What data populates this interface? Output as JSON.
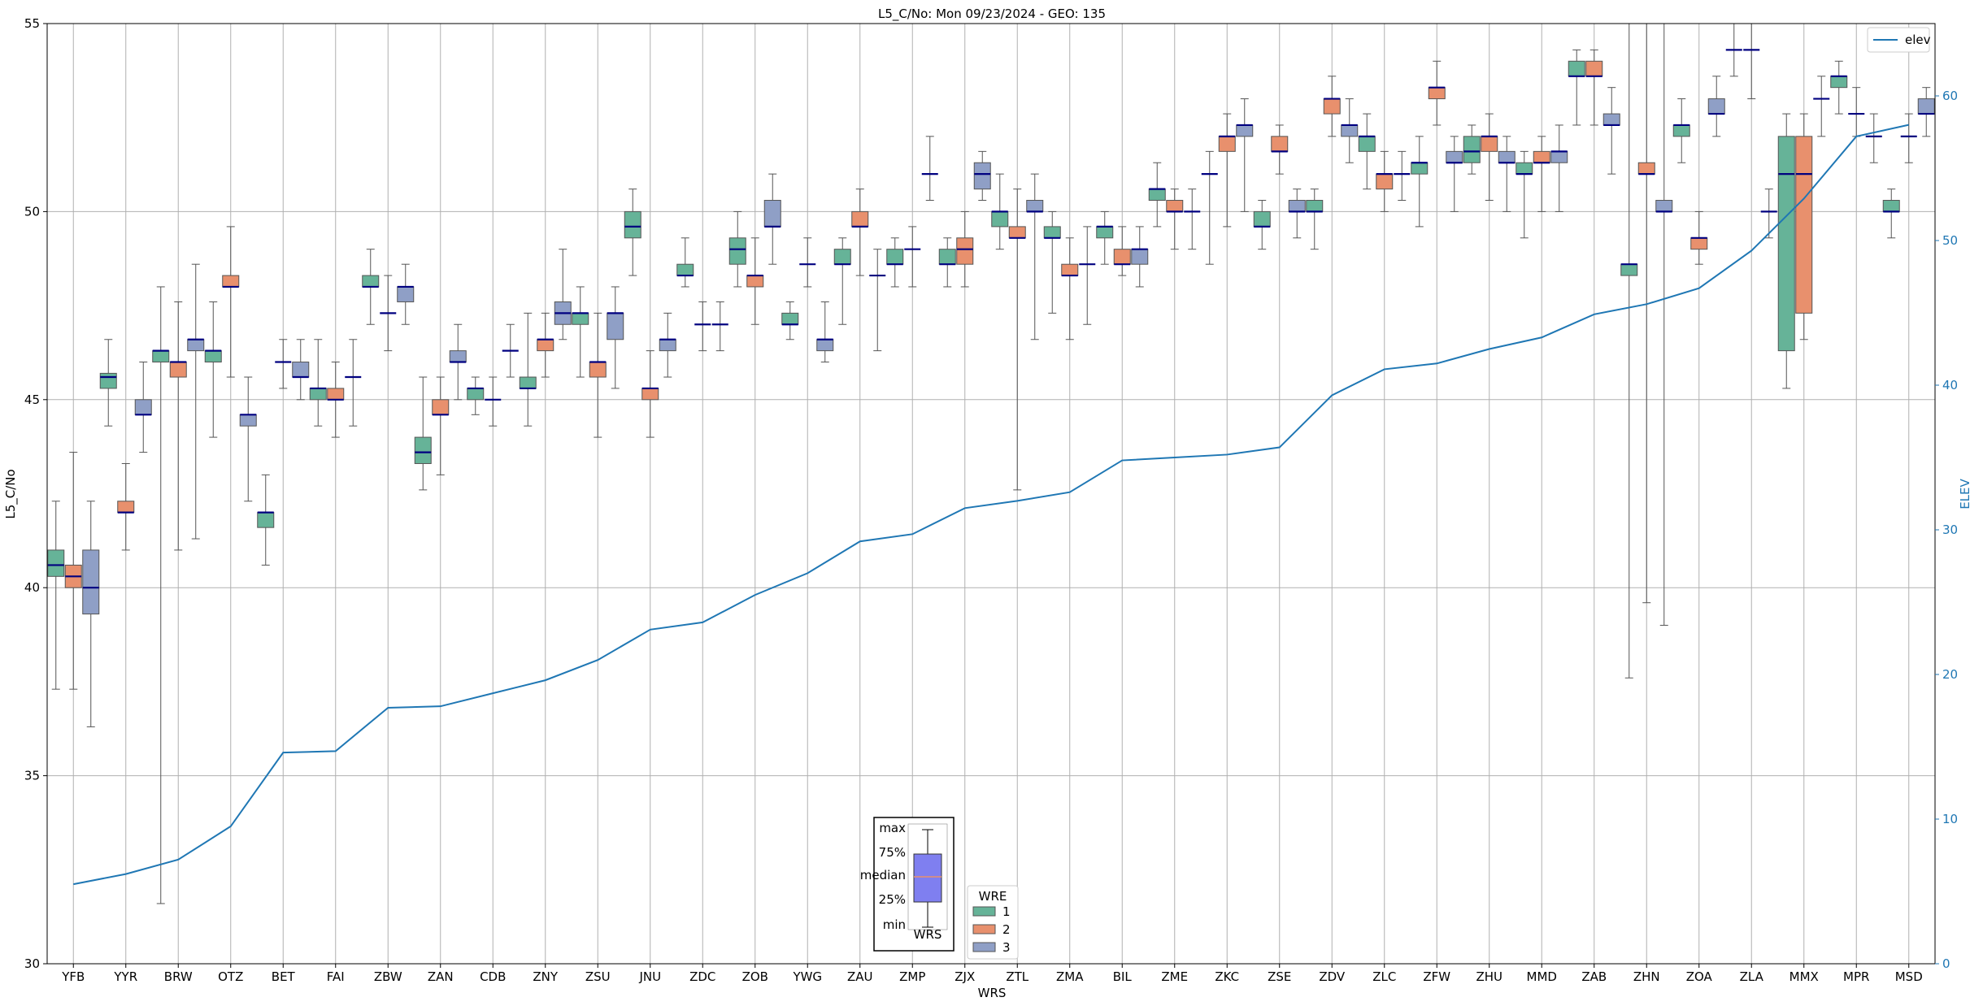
{
  "chart_data": {
    "type": "box",
    "title": "L5_C/No: Mon 09/23/2024 - GEO: 135",
    "xlabel": "WRS",
    "ylabel": "L5_C/No",
    "y2label": "ELEV",
    "ylim": [
      30,
      55
    ],
    "y2lim": [
      0,
      65
    ],
    "yticks": [
      30,
      35,
      40,
      45,
      50,
      55
    ],
    "y2ticks": [
      0,
      10,
      20,
      30,
      40,
      50,
      60
    ],
    "grid": true,
    "colors": {
      "1": "#66b398",
      "2": "#e8906d",
      "3": "#8f9fc6",
      "elev": "#1f77b4",
      "median": "#000080",
      "whisker": "#555555"
    },
    "categories": [
      "YFB",
      "YYR",
      "BRW",
      "OTZ",
      "BET",
      "FAI",
      "ZBW",
      "ZAN",
      "CDB",
      "ZNY",
      "ZSU",
      "JNU",
      "ZDC",
      "ZOB",
      "YWG",
      "ZAU",
      "ZMP",
      "ZJX",
      "ZTL",
      "ZMA",
      "BIL",
      "ZME",
      "ZKC",
      "ZSE",
      "ZDV",
      "ZLC",
      "ZFW",
      "ZHU",
      "MMD",
      "ZAB",
      "ZHN",
      "ZOA",
      "ZLA",
      "MMX",
      "MPR",
      "MSD"
    ],
    "legend": {
      "title": "WRE",
      "entries": [
        "1",
        "2",
        "3"
      ],
      "placement": "bottom-center"
    },
    "legend2": {
      "entries": [
        "elev"
      ],
      "placement": "top-right"
    },
    "boxes": [
      {
        "cat": "YFB",
        "wre": "1",
        "min": 37.3,
        "q1": 40.3,
        "med": 40.6,
        "q3": 41.0,
        "max": 42.3
      },
      {
        "cat": "YFB",
        "wre": "2",
        "min": 37.3,
        "q1": 40.0,
        "med": 40.3,
        "q3": 40.6,
        "max": 43.6
      },
      {
        "cat": "YFB",
        "wre": "3",
        "min": 36.3,
        "q1": 39.3,
        "med": 40.0,
        "q3": 41.0,
        "max": 42.3
      },
      {
        "cat": "YYR",
        "wre": "1",
        "min": 44.3,
        "q1": 45.3,
        "med": 45.6,
        "q3": 45.7,
        "max": 46.6
      },
      {
        "cat": "YYR",
        "wre": "2",
        "min": 41.0,
        "q1": 42.0,
        "med": 42.0,
        "q3": 42.3,
        "max": 43.3
      },
      {
        "cat": "YYR",
        "wre": "3",
        "min": 43.6,
        "q1": 44.6,
        "med": 44.6,
        "q3": 45.0,
        "max": 46.0
      },
      {
        "cat": "BRW",
        "wre": "1",
        "min": 31.6,
        "q1": 46.0,
        "med": 46.3,
        "q3": 46.3,
        "max": 48.0
      },
      {
        "cat": "BRW",
        "wre": "2",
        "min": 41.0,
        "q1": 45.6,
        "med": 46.0,
        "q3": 46.0,
        "max": 47.6
      },
      {
        "cat": "BRW",
        "wre": "3",
        "min": 41.3,
        "q1": 46.3,
        "med": 46.6,
        "q3": 46.6,
        "max": 48.6
      },
      {
        "cat": "OTZ",
        "wre": "1",
        "min": 44.0,
        "q1": 46.0,
        "med": 46.3,
        "q3": 46.3,
        "max": 47.6
      },
      {
        "cat": "OTZ",
        "wre": "2",
        "min": 45.6,
        "q1": 48.0,
        "med": 48.0,
        "q3": 48.3,
        "max": 49.6
      },
      {
        "cat": "OTZ",
        "wre": "3",
        "min": 42.3,
        "q1": 44.3,
        "med": 44.6,
        "q3": 44.6,
        "max": 45.6
      },
      {
        "cat": "BET",
        "wre": "1",
        "min": 40.6,
        "q1": 41.6,
        "med": 42.0,
        "q3": 42.0,
        "max": 43.0
      },
      {
        "cat": "BET",
        "wre": "2",
        "min": 45.3,
        "q1": 46.0,
        "med": 46.0,
        "q3": 46.0,
        "max": 46.6
      },
      {
        "cat": "BET",
        "wre": "3",
        "min": 45.0,
        "q1": 45.6,
        "med": 45.6,
        "q3": 46.0,
        "max": 46.6
      },
      {
        "cat": "FAI",
        "wre": "1",
        "min": 44.3,
        "q1": 45.0,
        "med": 45.3,
        "q3": 45.3,
        "max": 46.6
      },
      {
        "cat": "FAI",
        "wre": "2",
        "min": 44.0,
        "q1": 45.0,
        "med": 45.0,
        "q3": 45.3,
        "max": 46.0
      },
      {
        "cat": "FAI",
        "wre": "3",
        "min": 44.3,
        "q1": 45.6,
        "med": 45.6,
        "q3": 45.6,
        "max": 46.6
      },
      {
        "cat": "ZBW",
        "wre": "1",
        "min": 47.0,
        "q1": 48.0,
        "med": 48.0,
        "q3": 48.3,
        "max": 49.0
      },
      {
        "cat": "ZBW",
        "wre": "2",
        "min": 46.3,
        "q1": 47.3,
        "med": 47.3,
        "q3": 47.3,
        "max": 48.3
      },
      {
        "cat": "ZBW",
        "wre": "3",
        "min": 47.0,
        "q1": 47.6,
        "med": 48.0,
        "q3": 48.0,
        "max": 48.6
      },
      {
        "cat": "ZAN",
        "wre": "1",
        "min": 42.6,
        "q1": 43.3,
        "med": 43.6,
        "q3": 44.0,
        "max": 45.6
      },
      {
        "cat": "ZAN",
        "wre": "2",
        "min": 43.0,
        "q1": 44.6,
        "med": 44.6,
        "q3": 45.0,
        "max": 45.6
      },
      {
        "cat": "ZAN",
        "wre": "3",
        "min": 45.0,
        "q1": 46.0,
        "med": 46.0,
        "q3": 46.3,
        "max": 47.0
      },
      {
        "cat": "CDB",
        "wre": "1",
        "min": 44.6,
        "q1": 45.0,
        "med": 45.3,
        "q3": 45.3,
        "max": 45.6
      },
      {
        "cat": "CDB",
        "wre": "2",
        "min": 44.3,
        "q1": 45.0,
        "med": 45.0,
        "q3": 45.0,
        "max": 45.6
      },
      {
        "cat": "CDB",
        "wre": "3",
        "min": 45.6,
        "q1": 46.3,
        "med": 46.3,
        "q3": 46.3,
        "max": 47.0
      },
      {
        "cat": "ZNY",
        "wre": "1",
        "min": 44.3,
        "q1": 45.3,
        "med": 45.3,
        "q3": 45.6,
        "max": 47.3
      },
      {
        "cat": "ZNY",
        "wre": "2",
        "min": 45.6,
        "q1": 46.3,
        "med": 46.6,
        "q3": 46.6,
        "max": 47.3
      },
      {
        "cat": "ZNY",
        "wre": "3",
        "min": 46.6,
        "q1": 47.0,
        "med": 47.3,
        "q3": 47.6,
        "max": 49.0
      },
      {
        "cat": "ZSU",
        "wre": "1",
        "min": 45.6,
        "q1": 47.0,
        "med": 47.3,
        "q3": 47.3,
        "max": 48.0
      },
      {
        "cat": "ZSU",
        "wre": "2",
        "min": 44.0,
        "q1": 45.6,
        "med": 46.0,
        "q3": 46.0,
        "max": 47.3
      },
      {
        "cat": "ZSU",
        "wre": "3",
        "min": 45.3,
        "q1": 46.6,
        "med": 47.3,
        "q3": 47.3,
        "max": 48.0
      },
      {
        "cat": "JNU",
        "wre": "1",
        "min": 48.3,
        "q1": 49.3,
        "med": 49.6,
        "q3": 50.0,
        "max": 50.6
      },
      {
        "cat": "JNU",
        "wre": "2",
        "min": 44.0,
        "q1": 45.0,
        "med": 45.3,
        "q3": 45.3,
        "max": 46.3
      },
      {
        "cat": "JNU",
        "wre": "3",
        "min": 45.6,
        "q1": 46.3,
        "med": 46.6,
        "q3": 46.6,
        "max": 47.3
      },
      {
        "cat": "ZDC",
        "wre": "1",
        "min": 48.0,
        "q1": 48.3,
        "med": 48.3,
        "q3": 48.6,
        "max": 49.3
      },
      {
        "cat": "ZDC",
        "wre": "2",
        "min": 46.3,
        "q1": 47.0,
        "med": 47.0,
        "q3": 47.0,
        "max": 47.6
      },
      {
        "cat": "ZDC",
        "wre": "3",
        "min": 46.3,
        "q1": 47.0,
        "med": 47.0,
        "q3": 47.0,
        "max": 47.6
      },
      {
        "cat": "ZOB",
        "wre": "1",
        "min": 48.0,
        "q1": 48.6,
        "med": 49.0,
        "q3": 49.3,
        "max": 50.0
      },
      {
        "cat": "ZOB",
        "wre": "2",
        "min": 47.0,
        "q1": 48.0,
        "med": 48.3,
        "q3": 48.3,
        "max": 49.3
      },
      {
        "cat": "ZOB",
        "wre": "3",
        "min": 48.6,
        "q1": 49.6,
        "med": 49.6,
        "q3": 50.3,
        "max": 51.0
      },
      {
        "cat": "YWG",
        "wre": "1",
        "min": 46.6,
        "q1": 47.0,
        "med": 47.0,
        "q3": 47.3,
        "max": 47.6
      },
      {
        "cat": "YWG",
        "wre": "2",
        "min": 48.0,
        "q1": 48.6,
        "med": 48.6,
        "q3": 48.6,
        "max": 49.3
      },
      {
        "cat": "YWG",
        "wre": "3",
        "min": 46.0,
        "q1": 46.3,
        "med": 46.6,
        "q3": 46.6,
        "max": 47.6
      },
      {
        "cat": "ZAU",
        "wre": "1",
        "min": 47.0,
        "q1": 48.6,
        "med": 48.6,
        "q3": 49.0,
        "max": 49.3
      },
      {
        "cat": "ZAU",
        "wre": "2",
        "min": 48.3,
        "q1": 49.6,
        "med": 49.6,
        "q3": 50.0,
        "max": 50.6
      },
      {
        "cat": "ZAU",
        "wre": "3",
        "min": 46.3,
        "q1": 48.3,
        "med": 48.3,
        "q3": 48.3,
        "max": 49.0
      },
      {
        "cat": "ZMP",
        "wre": "1",
        "min": 48.0,
        "q1": 48.6,
        "med": 48.6,
        "q3": 49.0,
        "max": 49.3
      },
      {
        "cat": "ZMP",
        "wre": "2",
        "min": 48.0,
        "q1": 49.0,
        "med": 49.0,
        "q3": 49.0,
        "max": 49.6
      },
      {
        "cat": "ZMP",
        "wre": "3",
        "min": 50.3,
        "q1": 51.0,
        "med": 51.0,
        "q3": 51.0,
        "max": 52.0
      },
      {
        "cat": "ZJX",
        "wre": "1",
        "min": 48.0,
        "q1": 48.6,
        "med": 48.6,
        "q3": 49.0,
        "max": 49.3
      },
      {
        "cat": "ZJX",
        "wre": "2",
        "min": 48.0,
        "q1": 48.6,
        "med": 49.0,
        "q3": 49.3,
        "max": 50.0
      },
      {
        "cat": "ZJX",
        "wre": "3",
        "min": 50.3,
        "q1": 50.6,
        "med": 51.0,
        "q3": 51.3,
        "max": 51.6
      },
      {
        "cat": "ZTL",
        "wre": "1",
        "min": 49.0,
        "q1": 49.6,
        "med": 50.0,
        "q3": 50.0,
        "max": 51.0
      },
      {
        "cat": "ZTL",
        "wre": "2",
        "min": 42.6,
        "q1": 49.3,
        "med": 49.3,
        "q3": 49.6,
        "max": 50.6
      },
      {
        "cat": "ZTL",
        "wre": "3",
        "min": 46.6,
        "q1": 50.0,
        "med": 50.0,
        "q3": 50.3,
        "max": 51.0
      },
      {
        "cat": "ZMA",
        "wre": "1",
        "min": 47.3,
        "q1": 49.3,
        "med": 49.3,
        "q3": 49.6,
        "max": 50.0
      },
      {
        "cat": "ZMA",
        "wre": "2",
        "min": 46.6,
        "q1": 48.3,
        "med": 48.3,
        "q3": 48.6,
        "max": 49.3
      },
      {
        "cat": "ZMA",
        "wre": "3",
        "min": 47.0,
        "q1": 48.6,
        "med": 48.6,
        "q3": 48.6,
        "max": 49.6
      },
      {
        "cat": "BIL",
        "wre": "1",
        "min": 48.6,
        "q1": 49.3,
        "med": 49.6,
        "q3": 49.6,
        "max": 50.0
      },
      {
        "cat": "BIL",
        "wre": "2",
        "min": 48.3,
        "q1": 48.6,
        "med": 48.6,
        "q3": 49.0,
        "max": 49.6
      },
      {
        "cat": "BIL",
        "wre": "3",
        "min": 48.0,
        "q1": 48.6,
        "med": 49.0,
        "q3": 49.0,
        "max": 49.6
      },
      {
        "cat": "ZME",
        "wre": "1",
        "min": 49.6,
        "q1": 50.3,
        "med": 50.6,
        "q3": 50.6,
        "max": 51.3
      },
      {
        "cat": "ZME",
        "wre": "2",
        "min": 49.0,
        "q1": 50.0,
        "med": 50.0,
        "q3": 50.3,
        "max": 50.6
      },
      {
        "cat": "ZME",
        "wre": "3",
        "min": 49.0,
        "q1": 50.0,
        "med": 50.0,
        "q3": 50.0,
        "max": 50.6
      },
      {
        "cat": "ZKC",
        "wre": "1",
        "min": 48.6,
        "q1": 51.0,
        "med": 51.0,
        "q3": 51.0,
        "max": 51.6
      },
      {
        "cat": "ZKC",
        "wre": "2",
        "min": 49.6,
        "q1": 51.6,
        "med": 52.0,
        "q3": 52.0,
        "max": 52.6
      },
      {
        "cat": "ZKC",
        "wre": "3",
        "min": 50.0,
        "q1": 52.0,
        "med": 52.3,
        "q3": 52.3,
        "max": 53.0
      },
      {
        "cat": "ZSE",
        "wre": "1",
        "min": 49.0,
        "q1": 49.6,
        "med": 49.6,
        "q3": 50.0,
        "max": 50.3
      },
      {
        "cat": "ZSE",
        "wre": "2",
        "min": 51.0,
        "q1": 51.6,
        "med": 51.6,
        "q3": 52.0,
        "max": 52.3
      },
      {
        "cat": "ZSE",
        "wre": "3",
        "min": 49.3,
        "q1": 50.0,
        "med": 50.0,
        "q3": 50.3,
        "max": 50.6
      },
      {
        "cat": "ZDV",
        "wre": "1",
        "min": 49.0,
        "q1": 50.0,
        "med": 50.0,
        "q3": 50.3,
        "max": 50.6
      },
      {
        "cat": "ZDV",
        "wre": "2",
        "min": 52.0,
        "q1": 52.6,
        "med": 53.0,
        "q3": 53.0,
        "max": 53.6
      },
      {
        "cat": "ZDV",
        "wre": "3",
        "min": 51.3,
        "q1": 52.0,
        "med": 52.3,
        "q3": 52.3,
        "max": 53.0
      },
      {
        "cat": "ZLC",
        "wre": "1",
        "min": 50.6,
        "q1": 51.6,
        "med": 52.0,
        "q3": 52.0,
        "max": 52.6
      },
      {
        "cat": "ZLC",
        "wre": "2",
        "min": 50.0,
        "q1": 50.6,
        "med": 51.0,
        "q3": 51.0,
        "max": 51.6
      },
      {
        "cat": "ZLC",
        "wre": "3",
        "min": 50.3,
        "q1": 51.0,
        "med": 51.0,
        "q3": 51.0,
        "max": 51.6
      },
      {
        "cat": "ZFW",
        "wre": "1",
        "min": 49.6,
        "q1": 51.0,
        "med": 51.3,
        "q3": 51.3,
        "max": 52.0
      },
      {
        "cat": "ZFW",
        "wre": "2",
        "min": 52.3,
        "q1": 53.0,
        "med": 53.3,
        "q3": 53.3,
        "max": 54.0
      },
      {
        "cat": "ZFW",
        "wre": "3",
        "min": 50.0,
        "q1": 51.3,
        "med": 51.3,
        "q3": 51.6,
        "max": 52.0
      },
      {
        "cat": "ZHU",
        "wre": "1",
        "min": 51.0,
        "q1": 51.3,
        "med": 51.6,
        "q3": 52.0,
        "max": 52.3
      },
      {
        "cat": "ZHU",
        "wre": "2",
        "min": 50.3,
        "q1": 51.6,
        "med": 52.0,
        "q3": 52.0,
        "max": 52.6
      },
      {
        "cat": "ZHU",
        "wre": "3",
        "min": 50.0,
        "q1": 51.3,
        "med": 51.3,
        "q3": 51.6,
        "max": 52.0
      },
      {
        "cat": "MMD",
        "wre": "1",
        "min": 49.3,
        "q1": 51.0,
        "med": 51.0,
        "q3": 51.3,
        "max": 51.6
      },
      {
        "cat": "MMD",
        "wre": "2",
        "min": 50.0,
        "q1": 51.3,
        "med": 51.3,
        "q3": 51.6,
        "max": 52.0
      },
      {
        "cat": "MMD",
        "wre": "3",
        "min": 50.0,
        "q1": 51.3,
        "med": 51.6,
        "q3": 51.6,
        "max": 52.3
      },
      {
        "cat": "ZAB",
        "wre": "1",
        "min": 52.3,
        "q1": 53.6,
        "med": 53.6,
        "q3": 54.0,
        "max": 54.3
      },
      {
        "cat": "ZAB",
        "wre": "2",
        "min": 52.3,
        "q1": 53.6,
        "med": 53.6,
        "q3": 54.0,
        "max": 54.3
      },
      {
        "cat": "ZAB",
        "wre": "3",
        "min": 51.0,
        "q1": 52.3,
        "med": 52.3,
        "q3": 52.6,
        "max": 53.3
      },
      {
        "cat": "ZHN",
        "wre": "1",
        "min": 37.6,
        "q1": 48.3,
        "med": 48.6,
        "q3": 48.6,
        "max": 55.0
      },
      {
        "cat": "ZHN",
        "wre": "2",
        "min": 39.6,
        "q1": 51.0,
        "med": 51.0,
        "q3": 51.3,
        "max": 55.0
      },
      {
        "cat": "ZHN",
        "wre": "3",
        "min": 39.0,
        "q1": 50.0,
        "med": 50.0,
        "q3": 50.3,
        "max": 55.0
      },
      {
        "cat": "ZOA",
        "wre": "1",
        "min": 51.3,
        "q1": 52.0,
        "med": 52.3,
        "q3": 52.3,
        "max": 53.0
      },
      {
        "cat": "ZOA",
        "wre": "2",
        "min": 48.6,
        "q1": 49.0,
        "med": 49.3,
        "q3": 49.3,
        "max": 50.0
      },
      {
        "cat": "ZOA",
        "wre": "3",
        "min": 52.0,
        "q1": 52.6,
        "med": 52.6,
        "q3": 53.0,
        "max": 53.6
      },
      {
        "cat": "ZLA",
        "wre": "1",
        "min": 53.6,
        "q1": 54.3,
        "med": 54.3,
        "q3": 54.3,
        "max": 55.0
      },
      {
        "cat": "ZLA",
        "wre": "2",
        "min": 53.0,
        "q1": 54.3,
        "med": 54.3,
        "q3": 54.3,
        "max": 55.0
      },
      {
        "cat": "ZLA",
        "wre": "3",
        "min": 49.3,
        "q1": 50.0,
        "med": 50.0,
        "q3": 50.0,
        "max": 50.6
      },
      {
        "cat": "MMX",
        "wre": "1",
        "min": 45.3,
        "q1": 46.3,
        "med": 51.0,
        "q3": 52.0,
        "max": 52.6
      },
      {
        "cat": "MMX",
        "wre": "2",
        "min": 46.6,
        "q1": 47.3,
        "med": 51.0,
        "q3": 52.0,
        "max": 52.6
      },
      {
        "cat": "MMX",
        "wre": "3",
        "min": 52.0,
        "q1": 53.0,
        "med": 53.0,
        "q3": 53.0,
        "max": 53.6
      },
      {
        "cat": "MPR",
        "wre": "1",
        "min": 52.6,
        "q1": 53.3,
        "med": 53.6,
        "q3": 53.6,
        "max": 54.0
      },
      {
        "cat": "MPR",
        "wre": "2",
        "min": 52.0,
        "q1": 52.6,
        "med": 52.6,
        "q3": 52.6,
        "max": 53.3
      },
      {
        "cat": "MPR",
        "wre": "3",
        "min": 51.3,
        "q1": 52.0,
        "med": 52.0,
        "q3": 52.0,
        "max": 52.6
      },
      {
        "cat": "MSD",
        "wre": "1",
        "min": 49.3,
        "q1": 50.0,
        "med": 50.0,
        "q3": 50.3,
        "max": 50.6
      },
      {
        "cat": "MSD",
        "wre": "2",
        "min": 51.3,
        "q1": 52.0,
        "med": 52.0,
        "q3": 52.0,
        "max": 52.6
      },
      {
        "cat": "MSD",
        "wre": "3",
        "min": 52.0,
        "q1": 52.6,
        "med": 52.6,
        "q3": 53.0,
        "max": 53.3
      }
    ],
    "elev": {
      "name": "elev",
      "values": [
        5.5,
        6.2,
        7.2,
        9.5,
        14.6,
        14.7,
        17.7,
        17.8,
        18.7,
        19.6,
        21.0,
        23.1,
        23.6,
        25.5,
        27.0,
        29.2,
        29.7,
        31.5,
        32.0,
        32.6,
        34.8,
        35.0,
        35.2,
        35.7,
        39.3,
        41.1,
        41.5,
        42.5,
        43.3,
        44.9,
        45.6,
        46.7,
        49.3,
        52.9,
        57.2,
        58.0
      ]
    }
  },
  "inset": {
    "labels": [
      "max",
      "75%",
      "median",
      "25%",
      "min"
    ],
    "xlabel": "WRS"
  }
}
